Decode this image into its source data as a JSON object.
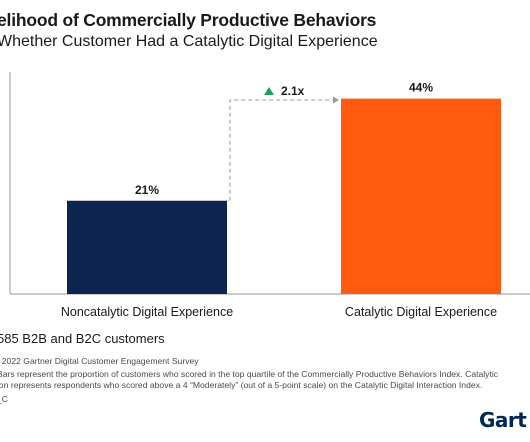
{
  "title": "elihood of Commercially Productive Behaviors",
  "subtitle": "Whether Customer Had a Catalytic Digital Experience",
  "chart_data": {
    "type": "bar",
    "categories": [
      "Noncatalytic Digital Experience",
      "Catalytic Digital Experience"
    ],
    "values": [
      21,
      44
    ],
    "value_labels": [
      "21%",
      "44%"
    ],
    "colors": [
      "#0d2451",
      "#ff5a0f"
    ],
    "ylim": [
      0,
      50
    ],
    "grid": false,
    "annotation": {
      "text": "2.1x",
      "color": "#1ea05a"
    }
  },
  "base": "585 B2B and B2C customers",
  "source": ": 2022 Gartner Digital Customer Engagement Survey",
  "notes": [
    "Bars represent the proportion of customers who scored in the top quartile of the Commercially Productive Behaviors Index. Catalytic",
    "ion represents respondents who scored above a 4 “Moderately” (out of a 5-point scale) on the Catalytic Digital Interaction Index."
  ],
  "code": "_C",
  "brand": "Gart"
}
